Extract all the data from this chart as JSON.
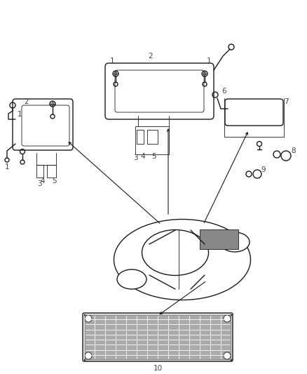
{
  "background_color": "#ffffff",
  "line_color": "#1a1a1a",
  "label_color": "#444444",
  "fig_width": 4.38,
  "fig_height": 5.33,
  "dpi": 100,
  "lw_main": 1.0,
  "lw_thin": 0.6,
  "fs_label": 7.5
}
